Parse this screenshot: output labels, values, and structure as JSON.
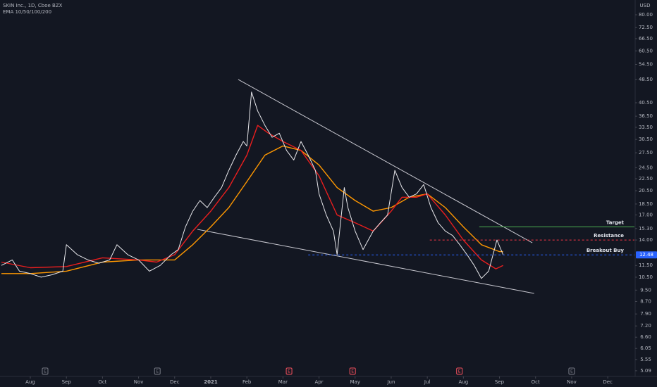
{
  "chart_data": {
    "type": "line",
    "title": "SKIN Inc., 1D, Cboe BZX",
    "subtitle": "EMA 10/50/100/200",
    "currency": "USD",
    "log_scale": true,
    "xlim": [
      -0.84,
      16.74
    ],
    "ylim": [
      4.74,
      89.7
    ],
    "xticks": [
      {
        "value": 0,
        "label": "Aug"
      },
      {
        "value": 1,
        "label": "Sep"
      },
      {
        "value": 2,
        "label": "Oct"
      },
      {
        "value": 3,
        "label": "Nov"
      },
      {
        "value": 4,
        "label": "Dec"
      },
      {
        "value": 5,
        "label": "2021"
      },
      {
        "value": 6,
        "label": "Feb"
      },
      {
        "value": 7,
        "label": "Mar"
      },
      {
        "value": 8,
        "label": "Apr"
      },
      {
        "value": 9,
        "label": "May"
      },
      {
        "value": 10,
        "label": "Jun"
      },
      {
        "value": 11,
        "label": "Jul"
      },
      {
        "value": 12,
        "label": "Aug"
      },
      {
        "value": 13,
        "label": "Sep"
      },
      {
        "value": 14,
        "label": "Oct"
      },
      {
        "value": 15,
        "label": "Nov"
      },
      {
        "value": 16,
        "label": "Dec"
      }
    ],
    "yticks": [
      {
        "value": 80,
        "label": "80.00"
      },
      {
        "value": 72.5,
        "label": "72.50"
      },
      {
        "value": 66.5,
        "label": "66.50"
      },
      {
        "value": 60.5,
        "label": "60.50"
      },
      {
        "value": 54.5,
        "label": "54.50"
      },
      {
        "value": 48.5,
        "label": "48.50"
      },
      {
        "value": 40.5,
        "label": "40.50"
      },
      {
        "value": 36.5,
        "label": "36.50"
      },
      {
        "value": 33.5,
        "label": "33.50"
      },
      {
        "value": 30.5,
        "label": "30.50"
      },
      {
        "value": 27.5,
        "label": "27.50"
      },
      {
        "value": 24.5,
        "label": "24.50"
      },
      {
        "value": 22.5,
        "label": "22.50"
      },
      {
        "value": 20.5,
        "label": "20.50"
      },
      {
        "value": 18.5,
        "label": "18.50"
      },
      {
        "value": 17,
        "label": "17.00"
      },
      {
        "value": 15.3,
        "label": "15.30"
      },
      {
        "value": 14,
        "label": "14.00"
      },
      {
        "value": 11.5,
        "label": "11.50"
      },
      {
        "value": 10.5,
        "label": "10.50"
      },
      {
        "value": 9.5,
        "label": "9.50"
      },
      {
        "value": 8.7,
        "label": "8.70"
      },
      {
        "value": 7.9,
        "label": "7.90"
      },
      {
        "value": 7.2,
        "label": "7.20"
      },
      {
        "value": 6.6,
        "label": "6.60"
      },
      {
        "value": 6.05,
        "label": "6.05"
      },
      {
        "value": 5.55,
        "label": "5.55"
      },
      {
        "value": 5.09,
        "label": "5.09"
      }
    ],
    "series": [
      {
        "color": "#ff9800",
        "x": [
          -0.8,
          0,
          1,
          2,
          3,
          4,
          4.5,
          5,
          5.5,
          6,
          6.5,
          7,
          7.5,
          8,
          8.5,
          9,
          9.5,
          10,
          10.5,
          11,
          11.5,
          12,
          12.5,
          13,
          13.1
        ],
        "values": [
          10.8,
          10.8,
          11,
          11.8,
          12,
          12,
          13.5,
          15.5,
          18,
          22,
          27,
          29,
          28,
          25,
          21,
          19,
          17.5,
          18,
          19.5,
          20,
          18,
          15.5,
          13.5,
          12.8,
          12.8
        ]
      },
      {
        "color": "#e91e1e",
        "x": [
          -0.8,
          0,
          1,
          2,
          3,
          3.5,
          4,
          4.5,
          5,
          5.5,
          6,
          6.3,
          6.6,
          7,
          7.5,
          8,
          8.5,
          9,
          9.5,
          10,
          10.3,
          10.7,
          11,
          11.5,
          12,
          12.5,
          12.9,
          13.1
        ],
        "values": [
          11.8,
          11.3,
          11.4,
          12.2,
          12,
          11.8,
          12.5,
          15,
          17.5,
          21,
          27,
          34,
          32,
          30,
          28,
          23,
          17,
          16,
          15,
          17.5,
          19.5,
          19.5,
          20,
          17,
          14,
          12,
          11.2,
          11.5
        ]
      },
      {
        "color": "#e8e8ec",
        "x": [
          -0.8,
          -0.5,
          -0.3,
          0,
          0.3,
          0.6,
          0.9,
          1,
          1.3,
          1.6,
          1.9,
          2.2,
          2.4,
          2.7,
          3,
          3.3,
          3.6,
          3.9,
          4.1,
          4.3,
          4.5,
          4.7,
          4.9,
          5.1,
          5.3,
          5.5,
          5.7,
          5.9,
          6,
          6.13,
          6.3,
          6.5,
          6.7,
          6.9,
          7.1,
          7.3,
          7.5,
          7.7,
          7.9,
          8,
          8.2,
          8.4,
          8.5,
          8.7,
          8.8,
          9,
          9.22,
          9.5,
          9.7,
          9.9,
          10.1,
          10.3,
          10.5,
          10.7,
          10.9,
          11.1,
          11.3,
          11.5,
          11.7,
          11.9,
          12.1,
          12.3,
          12.5,
          12.7,
          12.93,
          13.1
        ],
        "values": [
          11.5,
          12,
          11,
          10.8,
          10.5,
          10.7,
          11,
          13.5,
          12.5,
          12,
          11.7,
          12,
          13.5,
          12.5,
          12,
          11,
          11.5,
          12.5,
          13,
          15.5,
          17.5,
          19,
          18,
          19.5,
          21,
          24,
          27,
          30,
          29,
          44,
          38,
          34,
          31,
          32,
          28,
          26,
          30,
          27,
          24,
          20,
          17,
          15,
          12.5,
          21,
          18,
          15,
          13,
          15,
          16,
          17,
          24,
          21,
          19.5,
          20,
          21.5,
          18,
          16,
          15,
          14.5,
          13.5,
          12.5,
          11.5,
          10.4,
          11,
          14,
          12.5
        ]
      }
    ],
    "trendlines": [
      {
        "x": [
          5.76,
          13.91
        ],
        "y": [
          48.5,
          13.7
        ],
        "color": "#c8c8d0"
      },
      {
        "x": [
          4.63,
          13.96
        ],
        "y": [
          15.2,
          9.26
        ],
        "color": "#c8c8d0"
      }
    ],
    "levels": [
      {
        "text": "Target",
        "value": 15.5,
        "x": 12.44,
        "color": "#4caf50",
        "dashed": false
      },
      {
        "text": "Resistance",
        "value": 14,
        "x": 11.07,
        "color": "#f23645",
        "dashed": true
      },
      {
        "text": "Breakout Buy",
        "value": 12.48,
        "x": 7.7,
        "color": "#2962ff",
        "dashed": true
      }
    ],
    "price_label": {
      "value": 12.48,
      "label": "12.48",
      "color": "#2962ff"
    },
    "earnings": [
      {
        "x": 0.41,
        "label": "E",
        "color": "#787b86"
      },
      {
        "x": 3.52,
        "label": "E",
        "color": "#787b86"
      },
      {
        "x": 7.17,
        "label": "E",
        "color": "#f7525f"
      },
      {
        "x": 8.93,
        "label": "E",
        "color": "#f7525f"
      },
      {
        "x": 11.89,
        "label": "E",
        "color": "#f7525f"
      },
      {
        "x": 15.0,
        "label": "E",
        "color": "#787b86"
      }
    ]
  }
}
